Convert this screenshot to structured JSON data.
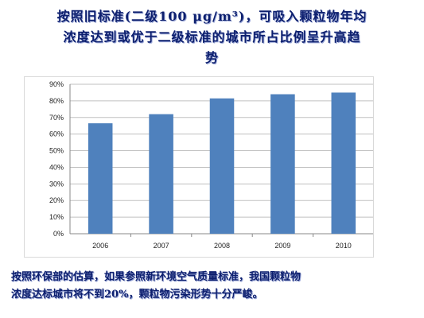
{
  "title": {
    "line1": "按照旧标准(二级100 μg/m³)，可吸入颗粒物年均",
    "line2": "浓度达到或优于二级标准的城市所占比例呈升高趋",
    "line3": "势"
  },
  "note": {
    "line1": "按照环保部的估算，如果参照新环境空气质量标准，我国颗粒物",
    "line2": "浓度达标城市将不到20%，颗粒物污染形势十分严峻。"
  },
  "colors": {
    "bar": "#4f81bd",
    "grid": "#c0c0c0",
    "axis": "#888888",
    "text": "#0d1f6e"
  },
  "chart_data": {
    "type": "bar",
    "categories": [
      "2006",
      "2007",
      "2008",
      "2009",
      "2010"
    ],
    "values": [
      66.5,
      72,
      81.5,
      84,
      85
    ],
    "y_ticks": [
      "0%",
      "10%",
      "20%",
      "30%",
      "40%",
      "50%",
      "60%",
      "70%",
      "80%",
      "90%"
    ],
    "ylim": [
      0,
      90
    ],
    "grid": true
  }
}
